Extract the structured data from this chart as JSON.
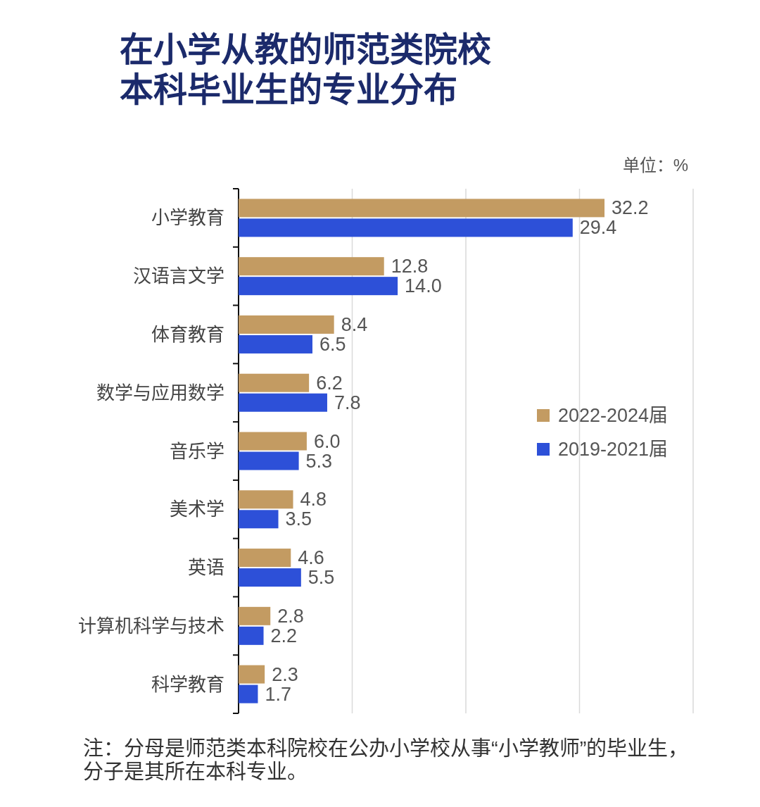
{
  "chart_data": {
    "type": "bar",
    "orientation": "horizontal",
    "title": "在小学从教的师范类院校本科毕业生的专业分布",
    "categories": [
      "小学教育",
      "汉语言文学",
      "体育教育",
      "数学与应用数学",
      "音乐学",
      "美术学",
      "英语",
      "计算机科学与技术",
      "科学教育"
    ],
    "series": [
      {
        "name": "2022-2024届",
        "color": "#c39b62",
        "values": [
          32.2,
          12.8,
          8.4,
          6.2,
          6.0,
          4.8,
          4.6,
          2.8,
          2.3
        ],
        "value_labels": [
          "32.2",
          "12.8",
          "8.4",
          "6.2",
          "6.0",
          "4.8",
          "4.6",
          "2.8",
          "2.3"
        ]
      },
      {
        "name": "2019-2021届",
        "color": "#2d50d8",
        "values": [
          29.4,
          14.0,
          6.5,
          7.8,
          5.3,
          3.5,
          5.5,
          2.2,
          1.7
        ],
        "value_labels": [
          "29.4",
          "14.0",
          "6.5",
          "7.8",
          "5.3",
          "3.5",
          "5.5",
          "2.2",
          "1.7"
        ]
      }
    ],
    "xlim": [
      0,
      40
    ],
    "xticks": [
      {
        "value": 10,
        "label": null
      },
      {
        "value": 20,
        "label": null
      },
      {
        "value": 30,
        "label": null
      },
      {
        "value": 40,
        "label": null
      }
    ],
    "grid": "x",
    "legend": "right",
    "tick_labels": "y",
    "annotations": [
      "单位：%",
      "注：分母是师范类本科院校在公办小学校从事“小学教师”的毕业生，分子是其所在本科专业。"
    ]
  }
}
